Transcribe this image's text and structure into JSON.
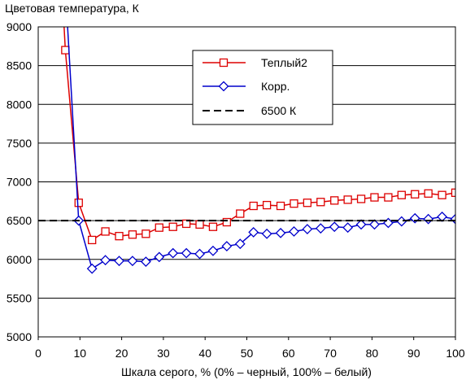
{
  "chart_data": {
    "type": "line",
    "title": "",
    "ylabel": "Цветовая температура, К",
    "xlabel": "Шкала серого, % (0% – черный, 100% – белый)",
    "xlim": [
      0,
      100
    ],
    "ylim": [
      5000,
      9000
    ],
    "xticks": [
      0,
      10,
      20,
      30,
      40,
      50,
      60,
      70,
      80,
      90,
      100
    ],
    "yticks": [
      5000,
      5500,
      6000,
      6500,
      7000,
      7500,
      8000,
      8500,
      9000
    ],
    "grid": "horizontal",
    "legend_position": "top-right",
    "series": [
      {
        "name": "Теплый2",
        "color": "#dd0000",
        "marker": "square",
        "x": [
          6.5,
          9.7,
          12.9,
          16.1,
          19.4,
          22.6,
          25.8,
          29.0,
          32.3,
          35.5,
          38.7,
          41.9,
          45.2,
          48.4,
          51.6,
          54.8,
          58.1,
          61.3,
          64.5,
          67.7,
          71.0,
          74.2,
          77.4,
          80.6,
          83.9,
          87.1,
          90.3,
          93.5,
          96.8,
          100.0
        ],
        "y": [
          8700,
          6730,
          6250,
          6360,
          6300,
          6320,
          6330,
          6410,
          6420,
          6460,
          6450,
          6420,
          6480,
          6590,
          6690,
          6700,
          6690,
          6720,
          6730,
          6740,
          6760,
          6770,
          6780,
          6800,
          6800,
          6830,
          6840,
          6850,
          6830,
          6860
        ]
      },
      {
        "name": "Корр.",
        "color": "#0000cc",
        "marker": "diamond",
        "x": [
          9.7,
          12.9,
          16.1,
          19.4,
          22.6,
          25.8,
          29.0,
          32.3,
          35.5,
          38.7,
          41.9,
          45.2,
          48.4,
          51.6,
          54.8,
          58.1,
          61.3,
          64.5,
          67.7,
          71.0,
          74.2,
          77.4,
          80.6,
          83.9,
          87.1,
          90.3,
          93.5,
          96.8,
          100.0
        ],
        "y": [
          6500,
          5880,
          5990,
          5980,
          5980,
          5970,
          6030,
          6080,
          6080,
          6070,
          6110,
          6170,
          6200,
          6350,
          6330,
          6340,
          6360,
          6390,
          6400,
          6420,
          6410,
          6450,
          6450,
          6470,
          6490,
          6530,
          6520,
          6550,
          6520
        ]
      },
      {
        "name": "6500 К",
        "color": "#000000",
        "style": "dashed",
        "x": [
          0,
          100
        ],
        "y": [
          6500,
          6500
        ]
      }
    ]
  }
}
